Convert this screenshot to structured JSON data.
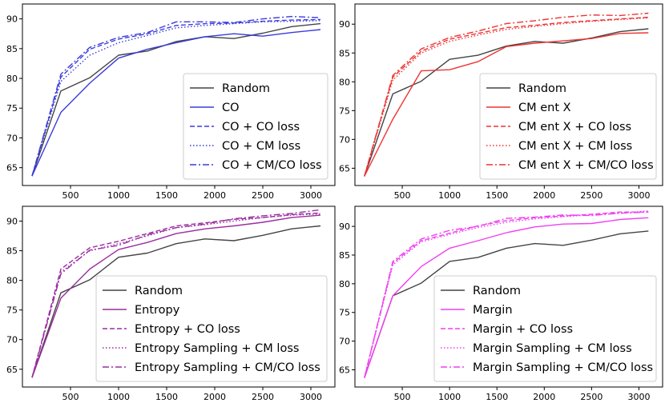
{
  "chart_data": [
    {
      "type": "line",
      "title": "",
      "xlabel": "",
      "ylabel": "",
      "xlim": [
        0,
        3250
      ],
      "ylim": [
        62,
        92.5
      ],
      "xticks": [
        500,
        1000,
        1500,
        2000,
        2500,
        3000
      ],
      "yticks": [
        65,
        70,
        75,
        80,
        85,
        90
      ],
      "legend_position": "bottom-right",
      "series": [
        {
          "name": "Random",
          "color": "#444444",
          "dash": "solid",
          "x": [
            100,
            400,
            700,
            1000,
            1300,
            1600,
            1900,
            2200,
            2500,
            2800,
            3100
          ],
          "y": [
            63.6,
            77.9,
            80.1,
            83.9,
            84.6,
            86.2,
            87.0,
            86.7,
            87.6,
            88.7,
            89.2
          ]
        },
        {
          "name": "CO",
          "color": "#3b3bdc",
          "dash": "solid",
          "x": [
            100,
            400,
            700,
            1000,
            1300,
            1600,
            1900,
            2200,
            2500,
            2800,
            3100
          ],
          "y": [
            63.6,
            74.3,
            79.2,
            83.4,
            84.9,
            86.0,
            87.0,
            87.5,
            87.1,
            87.7,
            88.2
          ]
        },
        {
          "name": "CO + CO loss",
          "color": "#3b3bdc",
          "dash": "dashed",
          "x": [
            100,
            400,
            700,
            1000,
            1300,
            1600,
            1900,
            2200,
            2500,
            2800,
            3100
          ],
          "y": [
            63.6,
            80.2,
            84.9,
            86.6,
            87.5,
            88.9,
            89.2,
            89.3,
            89.6,
            89.8,
            89.9
          ]
        },
        {
          "name": "CO + CM loss",
          "color": "#3b3bdc",
          "dash": "dotted",
          "x": [
            100,
            400,
            700,
            1000,
            1300,
            1600,
            1900,
            2200,
            2500,
            2800,
            3100
          ],
          "y": [
            63.6,
            79.5,
            83.9,
            86.0,
            87.2,
            88.5,
            88.9,
            89.2,
            89.5,
            89.6,
            89.7
          ]
        },
        {
          "name": "CO + CM/CO loss",
          "color": "#3b3bdc",
          "dash": "dashdot",
          "x": [
            100,
            400,
            700,
            1000,
            1300,
            1600,
            1900,
            2200,
            2500,
            2800,
            3100
          ],
          "y": [
            63.6,
            80.7,
            85.2,
            86.9,
            87.7,
            89.5,
            89.5,
            89.4,
            90.0,
            90.4,
            90.2
          ]
        }
      ]
    },
    {
      "type": "line",
      "title": "",
      "xlabel": "",
      "ylabel": "",
      "xlim": [
        0,
        3250
      ],
      "ylim": [
        62,
        93.5
      ],
      "xticks": [
        500,
        1000,
        1500,
        2000,
        2500,
        3000
      ],
      "yticks": [
        65,
        70,
        75,
        80,
        85,
        90
      ],
      "legend_position": "bottom-right",
      "series": [
        {
          "name": "Random",
          "color": "#444444",
          "dash": "solid",
          "x": [
            100,
            400,
            700,
            1000,
            1300,
            1600,
            1900,
            2200,
            2500,
            2800,
            3100
          ],
          "y": [
            63.6,
            77.9,
            80.1,
            83.9,
            84.6,
            86.2,
            87.0,
            86.7,
            87.6,
            88.7,
            89.2
          ]
        },
        {
          "name": "CM ent X",
          "color": "#ee3333",
          "dash": "solid",
          "x": [
            100,
            400,
            700,
            1000,
            1300,
            1600,
            1900,
            2200,
            2500,
            2800,
            3100
          ],
          "y": [
            63.6,
            73.5,
            81.9,
            82.1,
            83.5,
            86.1,
            86.7,
            87.1,
            87.5,
            88.4,
            88.5
          ]
        },
        {
          "name": "CM ent X + CO loss",
          "color": "#ee3333",
          "dash": "dashed",
          "x": [
            100,
            400,
            700,
            1000,
            1300,
            1600,
            1900,
            2200,
            2500,
            2800,
            3100
          ],
          "y": [
            63.6,
            80.8,
            85.3,
            87.4,
            88.4,
            89.4,
            89.8,
            90.3,
            90.6,
            90.9,
            91.2
          ]
        },
        {
          "name": "CM ent X + CM loss",
          "color": "#ee3333",
          "dash": "dotted",
          "x": [
            100,
            400,
            700,
            1000,
            1300,
            1600,
            1900,
            2200,
            2500,
            2800,
            3100
          ],
          "y": [
            63.6,
            80.3,
            85.0,
            87.0,
            88.1,
            89.1,
            89.6,
            90.1,
            90.5,
            90.8,
            91.1
          ]
        },
        {
          "name": "CM ent X + CM/CO loss",
          "color": "#ee3333",
          "dash": "dashdot",
          "x": [
            100,
            400,
            700,
            1000,
            1300,
            1600,
            1900,
            2200,
            2500,
            2800,
            3100
          ],
          "y": [
            63.6,
            81.1,
            85.7,
            87.7,
            88.8,
            90.1,
            90.6,
            91.2,
            91.6,
            91.5,
            91.9
          ]
        }
      ]
    },
    {
      "type": "line",
      "title": "",
      "xlabel": "",
      "ylabel": "",
      "xlim": [
        0,
        3250
      ],
      "ylim": [
        62,
        92.5
      ],
      "xticks": [
        500,
        1000,
        1500,
        2000,
        2500,
        3000
      ],
      "yticks": [
        65,
        70,
        75,
        80,
        85,
        90
      ],
      "legend_position": "bottom-right",
      "series": [
        {
          "name": "Random",
          "color": "#444444",
          "dash": "solid",
          "x": [
            100,
            400,
            700,
            1000,
            1300,
            1600,
            1900,
            2200,
            2500,
            2800,
            3100
          ],
          "y": [
            63.6,
            77.9,
            80.1,
            83.9,
            84.6,
            86.2,
            87.0,
            86.7,
            87.6,
            88.7,
            89.2
          ]
        },
        {
          "name": "Entropy",
          "color": "#9a2ea0",
          "dash": "solid",
          "x": [
            100,
            400,
            700,
            1000,
            1300,
            1600,
            1900,
            2200,
            2500,
            2800,
            3100
          ],
          "y": [
            63.6,
            77.0,
            81.9,
            85.2,
            86.4,
            87.9,
            88.7,
            89.2,
            89.8,
            90.6,
            91.0
          ]
        },
        {
          "name": "Entropy + CO loss",
          "color": "#9a2ea0",
          "dash": "dashed",
          "x": [
            100,
            400,
            700,
            1000,
            1300,
            1600,
            1900,
            2200,
            2500,
            2800,
            3100
          ],
          "y": [
            63.6,
            81.9,
            85.5,
            86.6,
            87.9,
            89.2,
            89.7,
            90.3,
            90.6,
            91.1,
            91.4
          ]
        },
        {
          "name": "Entropy Sampling + CM loss",
          "color": "#9a2ea0",
          "dash": "dotted",
          "x": [
            100,
            400,
            700,
            1000,
            1300,
            1600,
            1900,
            2200,
            2500,
            2800,
            3100
          ],
          "y": [
            63.6,
            81.4,
            85.0,
            86.2,
            87.5,
            88.9,
            89.4,
            90.0,
            90.6,
            91.0,
            91.2
          ]
        },
        {
          "name": "Entropy Sampling + CM/CO loss",
          "color": "#9a2ea0",
          "dash": "dashdot",
          "x": [
            100,
            400,
            700,
            1000,
            1300,
            1600,
            1900,
            2200,
            2500,
            2800,
            3100
          ],
          "y": [
            63.6,
            81.1,
            85.1,
            85.9,
            87.7,
            88.9,
            89.5,
            90.4,
            90.9,
            91.3,
            91.9
          ]
        }
      ]
    },
    {
      "type": "line",
      "title": "",
      "xlabel": "",
      "ylabel": "",
      "xlim": [
        0,
        3250
      ],
      "ylim": [
        62,
        93.5
      ],
      "xticks": [
        500,
        1000,
        1500,
        2000,
        2500,
        3000
      ],
      "yticks": [
        65,
        70,
        75,
        80,
        85,
        90
      ],
      "legend_position": "bottom-right",
      "series": [
        {
          "name": "Random",
          "color": "#444444",
          "dash": "solid",
          "x": [
            100,
            400,
            700,
            1000,
            1300,
            1600,
            1900,
            2200,
            2500,
            2800,
            3100
          ],
          "y": [
            63.6,
            77.9,
            80.1,
            83.9,
            84.6,
            86.2,
            87.0,
            86.7,
            87.6,
            88.7,
            89.2
          ]
        },
        {
          "name": "Margin",
          "color": "#f23ef2",
          "dash": "solid",
          "x": [
            100,
            400,
            700,
            1000,
            1300,
            1600,
            1900,
            2200,
            2500,
            2800,
            3100
          ],
          "y": [
            63.6,
            77.9,
            83.0,
            86.2,
            87.5,
            88.9,
            89.9,
            90.4,
            90.5,
            91.2,
            91.5
          ]
        },
        {
          "name": "Margin + CO loss",
          "color": "#f23ef2",
          "dash": "dashed",
          "x": [
            100,
            400,
            700,
            1000,
            1300,
            1600,
            1900,
            2200,
            2500,
            2800,
            3100
          ],
          "y": [
            63.6,
            83.6,
            87.5,
            88.8,
            90.1,
            91.0,
            91.5,
            91.8,
            92.1,
            92.5,
            92.5
          ]
        },
        {
          "name": "Margin Sampling + CM loss",
          "color": "#f23ef2",
          "dash": "dotted",
          "x": [
            100,
            400,
            700,
            1000,
            1300,
            1600,
            1900,
            2200,
            2500,
            2800,
            3100
          ],
          "y": [
            63.6,
            83.3,
            87.3,
            88.6,
            89.8,
            90.7,
            91.3,
            91.7,
            92.0,
            92.3,
            92.7
          ]
        },
        {
          "name": "Margin Sampling + CM/CO loss",
          "color": "#f23ef2",
          "dash": "dashdot",
          "x": [
            100,
            400,
            700,
            1000,
            1300,
            1600,
            1900,
            2200,
            2500,
            2800,
            3100
          ],
          "y": [
            63.6,
            83.9,
            87.8,
            89.3,
            90.0,
            91.4,
            91.6,
            92.0,
            91.9,
            92.3,
            92.5
          ]
        }
      ]
    }
  ]
}
